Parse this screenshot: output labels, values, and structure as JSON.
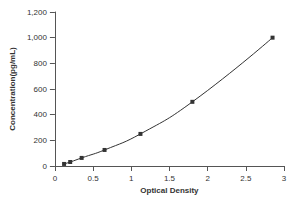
{
  "chart_data": {
    "type": "line",
    "x_label": "Optical Density",
    "y_label": "Concentration(pg/mL)",
    "x": [
      0.12,
      0.2,
      0.35,
      0.65,
      1.12,
      1.8,
      2.85
    ],
    "values": [
      16,
      31,
      63,
      125,
      250,
      500,
      1000
    ],
    "color": "#333333",
    "marker": "square",
    "line_style": "solid",
    "xlim": [
      0,
      3
    ],
    "xticks": [
      0,
      0.5,
      1,
      1.5,
      2,
      2.5,
      3
    ],
    "ylim": [
      0,
      1200
    ],
    "yticks": [
      0,
      200,
      400,
      600,
      800,
      1000,
      1200
    ],
    "grid": false
  }
}
